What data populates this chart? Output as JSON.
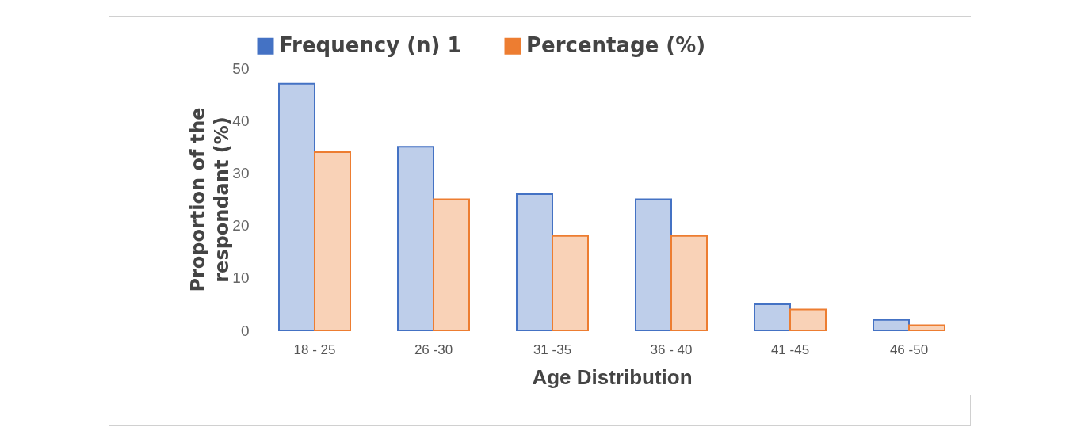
{
  "chart_data": {
    "type": "bar",
    "xlabel": "Age Distribution",
    "ylabel": "Proportion of the\nrespondant   (%)",
    "categories": [
      "18 - 25",
      "26 -30",
      "31 -35",
      "36 - 40",
      "41 -45",
      "46 -50"
    ],
    "series": [
      {
        "name": "Frequency (n) 1",
        "color": "#4472c4",
        "values": [
          47,
          35,
          26,
          25,
          5,
          2
        ]
      },
      {
        "name": "Percentage (%)",
        "color": "#ed7d31",
        "values": [
          34,
          25,
          18,
          18,
          4,
          1
        ]
      }
    ],
    "ylim": [
      0,
      50
    ],
    "yticks": [
      0,
      10,
      20,
      30,
      40,
      50
    ],
    "grid": false,
    "legend": "top"
  }
}
